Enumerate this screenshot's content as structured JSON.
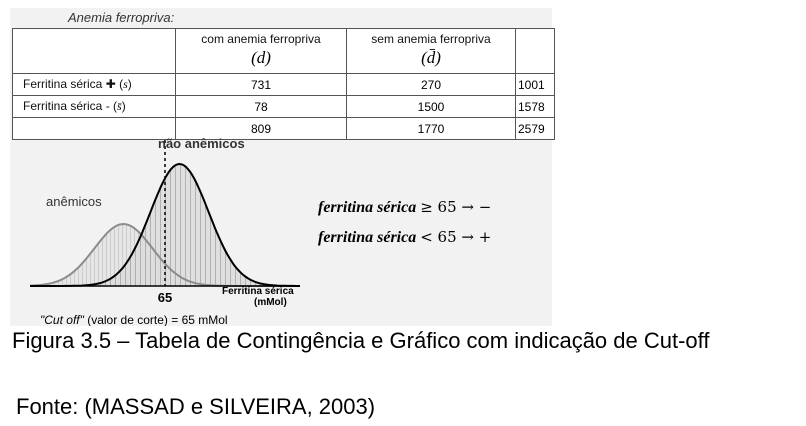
{
  "table": {
    "title": "Anemia ferropriva:",
    "col_headers": [
      {
        "label": "com anemia ferropriva",
        "symbol": "(d)"
      },
      {
        "label": "sem anemia ferropriva",
        "symbol": "(d̄)"
      }
    ],
    "rows": [
      {
        "label": "Ferritina sérica ✚ (",
        "symbol": "s",
        "close": ")",
        "values": [
          "731",
          "270",
          "1001"
        ]
      },
      {
        "label": "Ferritina sérica - (",
        "symbol": "s̄",
        "close": ")",
        "values": [
          "78",
          "1500",
          "1578"
        ]
      },
      {
        "label": "",
        "symbol": "",
        "close": "",
        "values": [
          "809",
          "1770",
          "2579"
        ]
      }
    ]
  },
  "chart_data": {
    "type": "area",
    "series": [
      {
        "name": "anêmicos",
        "mean": 45,
        "sd": 14
      },
      {
        "name": "não anêmicos",
        "mean": 72,
        "sd": 14
      }
    ],
    "cutoff": 65,
    "xlabel": "Ferritina sérica (mMol)",
    "tick_label": "65",
    "cutoff_note": "\"Cut off\" (valor de corte) = 65 mMol"
  },
  "rules": [
    {
      "lhs": "ferritina sérica",
      "rhs": "≥ 65 → −"
    },
    {
      "lhs": "ferritina sérica",
      "rhs": "< 65 → +"
    }
  ],
  "caption": "Figura 3.5 – Tabela de Contingência e Gráfico com indicação de Cut-off",
  "source": "Fonte: (MASSAD e SILVEIRA, 2003)"
}
